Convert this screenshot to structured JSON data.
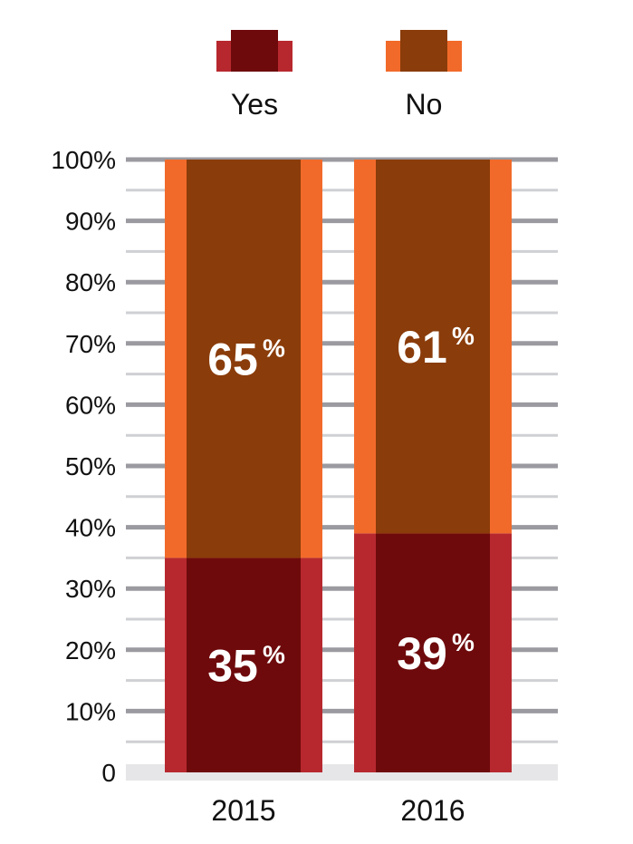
{
  "chart_data": {
    "type": "bar",
    "stacked": true,
    "categories": [
      "2015",
      "2016"
    ],
    "series": [
      {
        "name": "Yes",
        "values": [
          35,
          39
        ],
        "value_labels": [
          "35",
          "39"
        ],
        "color_inner": "#6e0a0c",
        "color_outer": "#b7282e"
      },
      {
        "name": "No",
        "values": [
          65,
          61
        ],
        "value_labels": [
          "65",
          "61"
        ],
        "color_inner": "#8a3c0a",
        "color_outer": "#f26a2a"
      }
    ],
    "percent_symbol": "%",
    "y_ticks": [
      "0",
      "10%",
      "20%",
      "30%",
      "40%",
      "50%",
      "60%",
      "70%",
      "80%",
      "90%",
      "100%"
    ],
    "ylim": [
      0,
      100
    ],
    "grid": true,
    "legend_position": "top-center"
  }
}
